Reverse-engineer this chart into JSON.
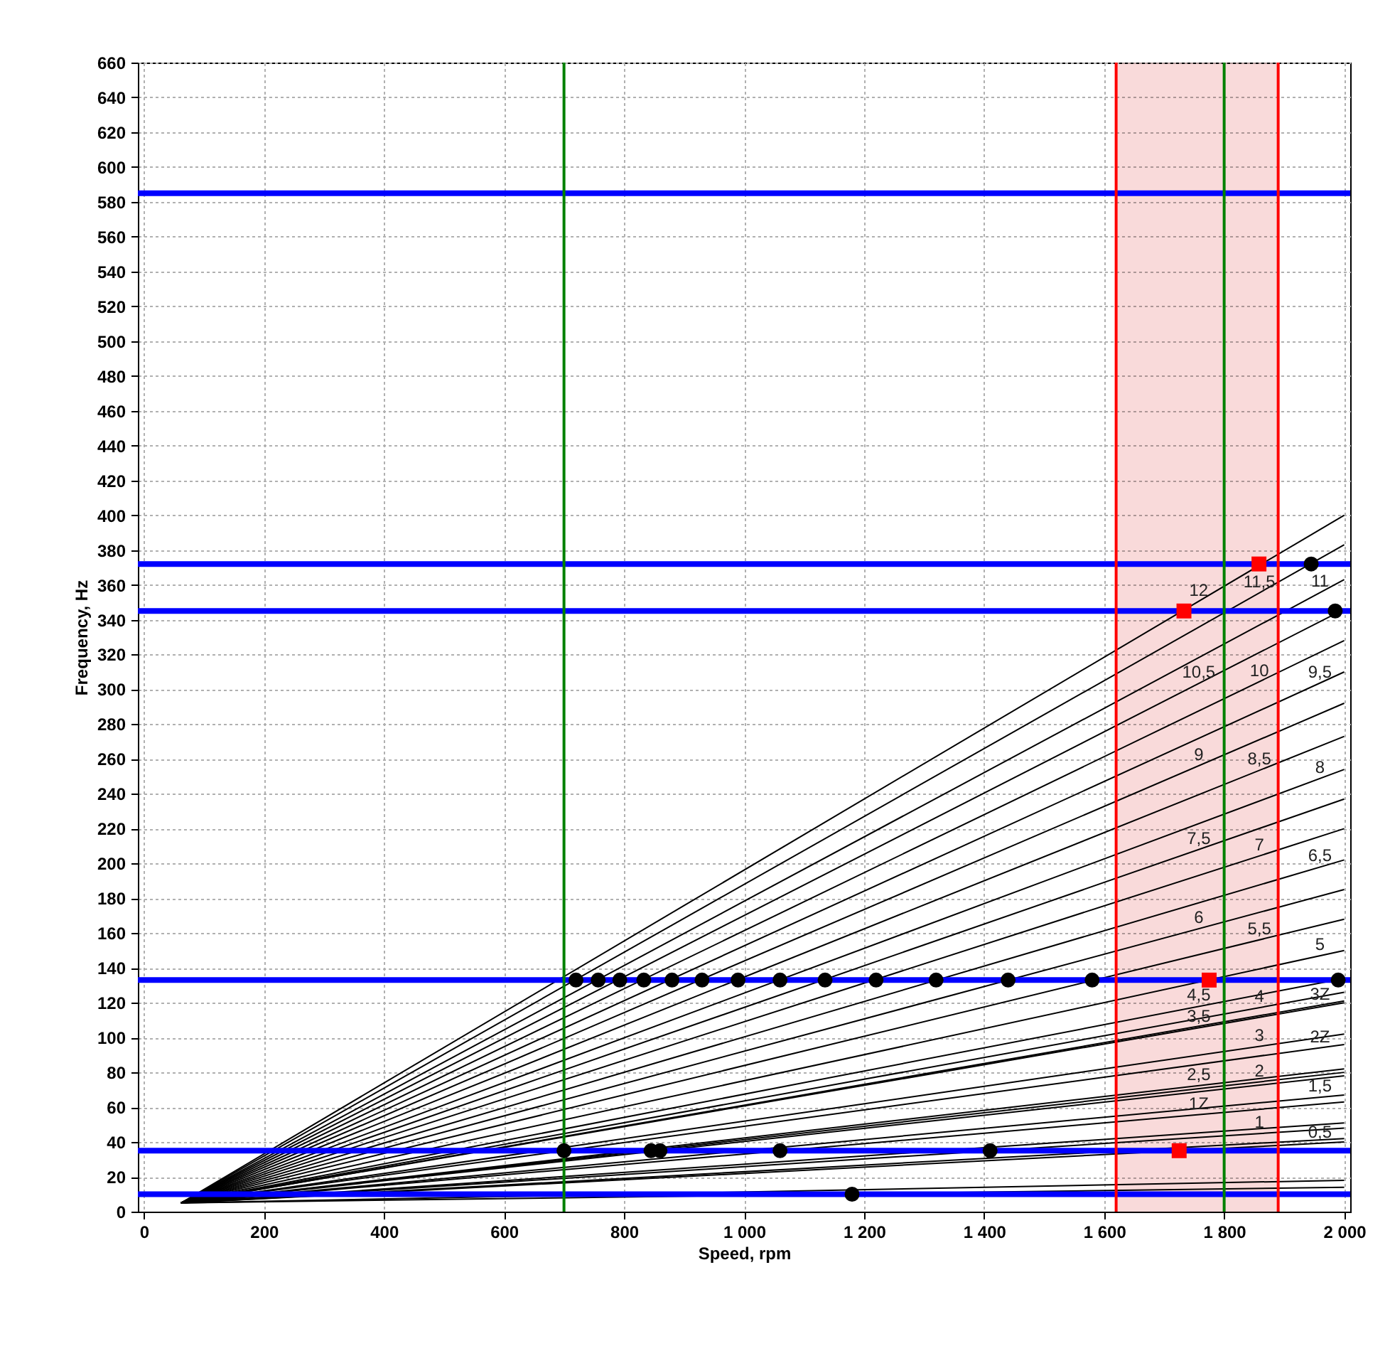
{
  "chart_data": {
    "type": "line",
    "xlabel": "Speed, rpm",
    "ylabel": "Frequency, Hz",
    "xlim": [
      -10,
      2010
    ],
    "ylim": [
      0,
      660
    ],
    "xticks": [
      0,
      200,
      400,
      600,
      800,
      {
        "value": 1000,
        "label": "1 000"
      },
      {
        "value": 1200,
        "label": "1 200"
      },
      {
        "value": 1400,
        "label": "1 400"
      },
      {
        "value": 1600,
        "label": "1 600"
      },
      {
        "value": 1800,
        "label": "1 800"
      },
      {
        "value": 2000,
        "label": "2 000"
      }
    ],
    "yticks": [
      0,
      20,
      40,
      60,
      80,
      100,
      120,
      140,
      160,
      180,
      200,
      220,
      240,
      260,
      280,
      300,
      320,
      340,
      360,
      380,
      400,
      420,
      440,
      460,
      480,
      500,
      520,
      540,
      560,
      580,
      600,
      620,
      640,
      660
    ],
    "grid": true,
    "x": [
      62,
      2000
    ],
    "series": [
      {
        "color": "#000000",
        "values": [
          5,
          14
        ]
      },
      {
        "color": "#000000",
        "values": [
          5,
          18
        ]
      },
      {
        "name": "0,5",
        "color": "#000000",
        "values": [
          5,
          40
        ]
      },
      {
        "color": "#000000",
        "values": [
          5,
          42
        ]
      },
      {
        "name": "1",
        "color": "#000000",
        "values": [
          5,
          48
        ]
      },
      {
        "color": "#000000",
        "values": [
          5,
          51
        ]
      },
      {
        "name": "1Z",
        "color": "#000000",
        "values": [
          5,
          63
        ]
      },
      {
        "name": "1,5",
        "color": "#000000",
        "values": [
          5,
          67
        ]
      },
      {
        "color": "#000000",
        "values": [
          5,
          78
        ]
      },
      {
        "name": "2",
        "color": "#000000",
        "values": [
          5,
          80
        ]
      },
      {
        "name": "2,5",
        "color": "#000000",
        "values": [
          5,
          82
        ]
      },
      {
        "name": "2Z",
        "color": "#000000",
        "values": [
          5,
          96
        ]
      },
      {
        "name": "3",
        "color": "#000000",
        "values": [
          5,
          102
        ]
      },
      {
        "name": "3,5",
        "color": "#000000",
        "values": [
          5,
          120
        ]
      },
      {
        "name": "3Z",
        "color": "#000000",
        "values": [
          5,
          121
        ]
      },
      {
        "name": "4",
        "color": "#000000",
        "values": [
          5,
          126
        ]
      },
      {
        "name": "4,5",
        "color": "#000000",
        "values": [
          5,
          134
        ]
      },
      {
        "name": "5",
        "color": "#000000",
        "values": [
          5,
          150
        ]
      },
      {
        "name": "5,5",
        "color": "#000000",
        "values": [
          5,
          168
        ]
      },
      {
        "name": "6",
        "color": "#000000",
        "values": [
          5,
          185
        ]
      },
      {
        "name": "6,5",
        "color": "#000000",
        "values": [
          5,
          202
        ]
      },
      {
        "name": "7",
        "color": "#000000",
        "values": [
          5,
          220
        ]
      },
      {
        "name": "7,5",
        "color": "#000000",
        "values": [
          5,
          237
        ]
      },
      {
        "name": "8",
        "color": "#000000",
        "values": [
          5,
          254
        ]
      },
      {
        "name": "8,5",
        "color": "#000000",
        "values": [
          5,
          273
        ]
      },
      {
        "name": "9",
        "color": "#000000",
        "values": [
          5,
          292
        ]
      },
      {
        "name": "9,5",
        "color": "#000000",
        "values": [
          5,
          310
        ]
      },
      {
        "name": "10",
        "color": "#000000",
        "values": [
          5,
          328
        ]
      },
      {
        "name": "10,5",
        "color": "#000000",
        "values": [
          5,
          346
        ]
      },
      {
        "name": "11",
        "color": "#000000",
        "values": [
          5,
          363
        ]
      },
      {
        "name": "11,5",
        "color": "#000000",
        "values": [
          5,
          383
        ]
      },
      {
        "name": "12",
        "color": "#000000",
        "values": [
          5,
          400
        ]
      },
      {
        "type": "scatter",
        "marker": "circle",
        "color": "#000000",
        "x": [
          720,
          757,
          793,
          833,
          880,
          930,
          990,
          1060,
          1135,
          1220,
          1320,
          1440,
          1580,
          1990,
          700,
          845,
          860,
          1060,
          1410,
          1180,
          1985,
          1945
        ],
        "values": [
          133,
          133,
          133,
          133,
          133,
          133,
          133,
          133,
          133,
          133,
          133,
          133,
          133,
          133,
          35,
          35,
          35,
          35,
          35,
          10,
          345,
          372
        ]
      },
      {
        "type": "scatter",
        "marker": "square",
        "color": "#ff0000",
        "x": [
          1775,
          1725,
          1733,
          1858
        ],
        "values": [
          133,
          35,
          345,
          372
        ]
      }
    ],
    "ref_lines": [
      {
        "axis": "y",
        "value": 10,
        "color": "#0000ff"
      },
      {
        "axis": "y",
        "value": 35,
        "color": "#0000ff"
      },
      {
        "axis": "y",
        "value": 133,
        "color": "#0000ff"
      },
      {
        "axis": "y",
        "value": 345,
        "color": "#0000ff"
      },
      {
        "axis": "y",
        "value": 372,
        "color": "#0000ff"
      },
      {
        "axis": "y",
        "value": 585,
        "color": "#0000ff"
      },
      {
        "axis": "x",
        "value": 700,
        "color": "#008000"
      },
      {
        "axis": "x",
        "value": 1800,
        "color": "#008000"
      },
      {
        "axis": "x",
        "value": 1620,
        "color": "#ff0000"
      },
      {
        "axis": "x",
        "value": 1890,
        "color": "#ff0000"
      }
    ],
    "bands": [
      {
        "axis": "x",
        "from": 1620,
        "to": 1890,
        "color": "#f9dada"
      }
    ]
  }
}
